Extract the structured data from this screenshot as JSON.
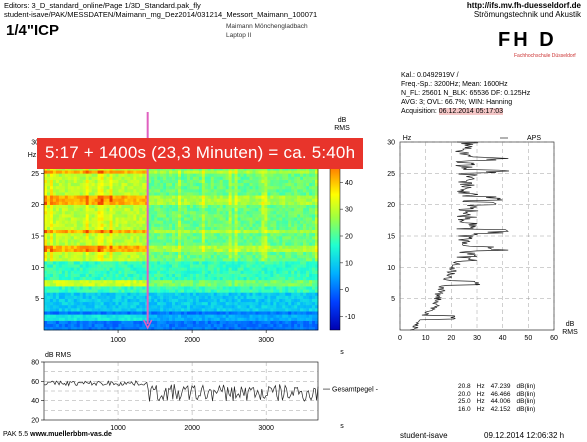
{
  "header": {
    "editor_line": "Editors: 3_D_standard_online/Page 1/3D_Standard.pak_fly",
    "path_line": "student-isave/PAK/MESSDATEN/Maimann_mg_Dez2014/031214_Messort_Maimann_100071",
    "url": "http://ifs.mv.fh-duesseldorf.de",
    "institute": "Strömungstechnik und Akustik"
  },
  "channel_title": "1/4\"ICP",
  "location": "Maimann Mönchengladbach",
  "device": "Laptop II",
  "logo": {
    "text": "FH D",
    "sub": "Fachhochschule Düsseldorf"
  },
  "params": {
    "cal": "Kal.: 0.0492919V /",
    "freq": "Freq.-Sp.: 3200Hz; Mean: 1600Hz",
    "fl": "N_FL: 25601 N_BLK: 65536 DF: 0.125Hz",
    "avg": "AVG: 3; OVL: 66.7%; WIN: Hanning",
    "acq_label": "Acquisition: ",
    "acq_value": "06.12.2014 05:17:03"
  },
  "annotation": "5:17 + 1400s (23,3 Minuten) = ca. 5:40h",
  "colors": {
    "annotation_bg": "#e8342b",
    "marker": "#e060c0",
    "curve": "#222222"
  },
  "chart_data": [
    {
      "type": "heatmap",
      "ylabel": "Hz",
      "xlim": [
        0,
        3700
      ],
      "ylim": [
        0,
        30
      ],
      "xticks": [
        1000,
        2000,
        3000
      ],
      "yticks": [
        5,
        10,
        15,
        20,
        25,
        30
      ],
      "xunit": "s",
      "colorbar": {
        "label": "dB RMS",
        "ticks": [
          50,
          40,
          30,
          20,
          10,
          0,
          -10
        ],
        "range": [
          -15,
          55
        ]
      },
      "marker_x": 1400,
      "tonal_lines_hz": [
        2,
        7.5,
        13,
        15.8,
        20.2,
        21,
        25.3,
        27.3
      ]
    },
    {
      "type": "line",
      "ylabel": "dB RMS",
      "xlim": [
        0,
        3700
      ],
      "ylim": [
        20,
        80
      ],
      "xticks": [
        1000,
        2000,
        3000
      ],
      "yticks": [
        20,
        40,
        60,
        80
      ],
      "xunit": "s",
      "legend": "Gesamtpegel"
    },
    {
      "type": "line",
      "title": "APS",
      "xlabel": "",
      "ylabel": "Hz",
      "xunit": "dB RMS",
      "xlim": [
        0,
        60
      ],
      "ylim": [
        0,
        30
      ],
      "xticks": [
        0,
        10,
        20,
        30,
        40,
        50,
        60
      ],
      "yticks": [
        5,
        10,
        15,
        20,
        25,
        30
      ]
    }
  ],
  "level_table": [
    {
      "hz": "20.8",
      "unit": "Hz",
      "db": "47.239",
      "dbunit": "dB(lin)"
    },
    {
      "hz": "20.0",
      "unit": "Hz",
      "db": "46.466",
      "dbunit": "dB(lin)"
    },
    {
      "hz": "25.0",
      "unit": "Hz",
      "db": "44.006",
      "dbunit": "dB(lin)"
    },
    {
      "hz": "16.0",
      "unit": "Hz",
      "db": "42.152",
      "dbunit": "dB(lin)"
    }
  ],
  "footer": {
    "pak": "PAK 5.5",
    "www": "www.muellerbbm-vas.de",
    "user": "student-isave",
    "date": "09.12.2014 12:06:32 h"
  }
}
